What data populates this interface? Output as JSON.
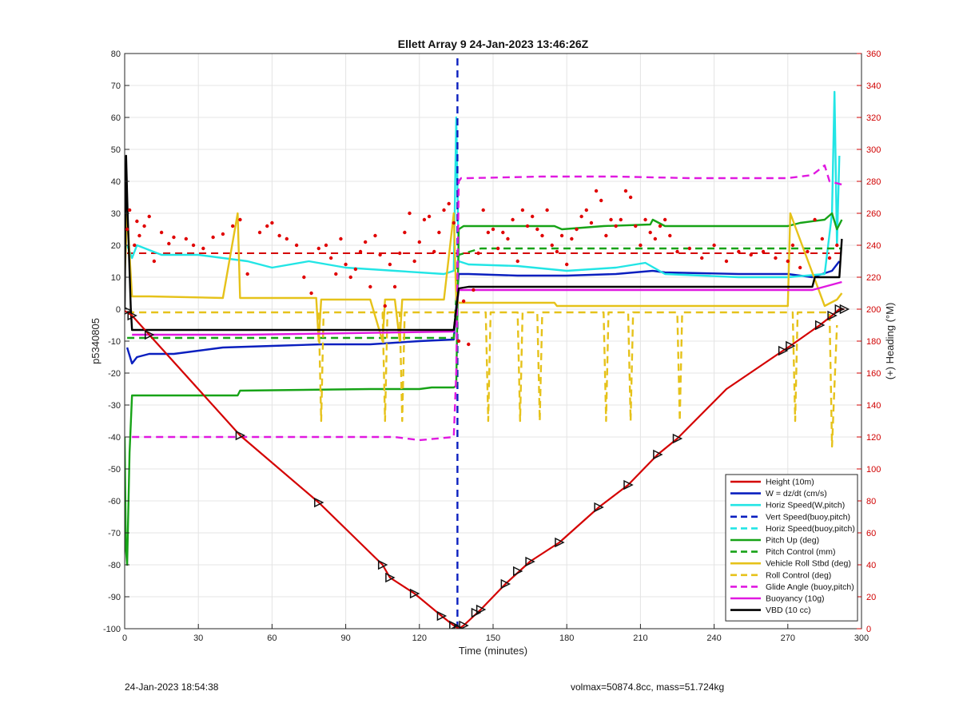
{
  "footer": {
    "timestamp": "24-Jan-2023 18:54:38",
    "info": "volmax=50874.8cc, mass=51.724kg"
  },
  "chart_data": {
    "type": "line",
    "title": "Ellett Array 9 24-Jan-2023 13:46:26Z",
    "xlabel": "Time (minutes)",
    "ylabel": "p5340805",
    "y2label": "(+) Heading (°M)",
    "xlim": [
      0,
      300
    ],
    "ylim": [
      -100,
      80
    ],
    "y2lim": [
      0,
      360
    ],
    "xticks": [
      0,
      30,
      60,
      90,
      120,
      150,
      180,
      210,
      240,
      270,
      300
    ],
    "yticks": [
      -100,
      -90,
      -80,
      -70,
      -60,
      -50,
      -40,
      -30,
      -20,
      -10,
      0,
      10,
      20,
      30,
      40,
      50,
      60,
      70,
      80
    ],
    "y2ticks": [
      0,
      20,
      40,
      60,
      80,
      100,
      120,
      140,
      160,
      180,
      200,
      220,
      240,
      260,
      280,
      300,
      320,
      340,
      360
    ],
    "grid": true,
    "legend_position": "bottom-right",
    "series": [
      {
        "name": "Height (10m)",
        "color": "#d40000",
        "style": "solid",
        "axis": "left",
        "x": [
          0,
          1,
          3,
          10,
          47,
          79,
          105,
          108,
          118,
          129,
          134,
          136,
          138,
          145,
          155,
          165,
          177,
          193,
          205,
          217,
          225,
          245,
          268,
          271,
          283,
          288,
          291,
          293
        ],
        "y": [
          -0.5,
          -1,
          -2,
          -8,
          -39.5,
          -60.5,
          -80,
          -84,
          -89,
          -96,
          -99,
          -100,
          -99,
          -94,
          -86,
          -79,
          -73,
          -62,
          -55,
          -45.5,
          -40.5,
          -25,
          -13,
          -11.5,
          -5,
          -2,
          0,
          0
        ]
      },
      {
        "name": "W = dz/dt (cm/s)",
        "color": "#0a1fbf",
        "style": "solid",
        "axis": "left",
        "x": [
          1,
          3,
          5,
          10,
          20,
          40,
          60,
          80,
          100,
          120,
          134,
          136,
          140,
          160,
          180,
          200,
          215,
          220,
          250,
          270,
          280,
          288,
          291
        ],
        "y": [
          -12,
          -17,
          -15,
          -14,
          -14,
          -12,
          -11.5,
          -11,
          -11,
          -10,
          -9.5,
          11,
          11,
          10.5,
          10.5,
          11,
          12,
          11.5,
          11,
          11,
          10,
          12,
          15
        ]
      },
      {
        "name": "Horiz Speed(W,pitch)",
        "color": "#22e5e5",
        "style": "solid",
        "axis": "left",
        "x": [
          1,
          3,
          5,
          15,
          30,
          50,
          60,
          75,
          90,
          110,
          130,
          134,
          135,
          136,
          140,
          160,
          180,
          200,
          212,
          220,
          250,
          270,
          285,
          288,
          289,
          290,
          291
        ],
        "y": [
          20,
          16,
          20,
          17,
          17,
          15,
          13,
          15,
          13,
          12,
          11,
          12,
          60,
          15,
          14,
          13.5,
          12,
          13,
          14.5,
          11,
          10,
          10,
          11,
          30,
          68,
          20,
          48
        ]
      },
      {
        "name": "Vert Speed(buoy,pitch)",
        "color": "#0a1fbf",
        "style": "dashed",
        "axis": "left",
        "x": [
          135.5,
          135.5
        ],
        "y": [
          -100,
          80
        ]
      },
      {
        "name": "Horiz Speed(buoy,pitch)",
        "color": "#22e5e5",
        "style": "dashed",
        "axis": "left",
        "x": [],
        "y": []
      },
      {
        "name": "Pitch Up (deg)",
        "color": "#17a317",
        "style": "solid",
        "axis": "left",
        "x": [
          0,
          0.5,
          1,
          2,
          3,
          10,
          46,
          47,
          100,
          120,
          125,
          134,
          135,
          136,
          138,
          150,
          175,
          178,
          195,
          214,
          215,
          220,
          270,
          275,
          285,
          288,
          290,
          292
        ],
        "y": [
          -40,
          -75,
          -80,
          -45,
          -27,
          -27,
          -27,
          -25.5,
          -25,
          -25,
          -24.5,
          -24.5,
          -24,
          25,
          26,
          26,
          26,
          25,
          26,
          26.5,
          28,
          26,
          26,
          27,
          28,
          30,
          25,
          28
        ]
      },
      {
        "name": "Pitch Control (mm)",
        "color": "#17a317",
        "style": "dashed",
        "axis": "left",
        "x": [
          1,
          130,
          134,
          136,
          145,
          292
        ],
        "y": [
          -9,
          -9,
          -9,
          17,
          19,
          19
        ]
      },
      {
        "name": "Vehicle Roll Stbd (deg)",
        "color": "#e6c21a",
        "style": "solid",
        "axis": "left",
        "x": [
          0,
          1,
          3,
          10,
          40,
          46,
          47,
          78,
          79,
          80,
          100,
          105,
          106,
          110,
          112,
          113,
          130,
          134,
          135,
          136,
          145,
          175,
          176,
          190,
          215,
          225,
          270,
          271,
          285,
          290,
          292
        ],
        "y": [
          10,
          30,
          4,
          4,
          3.5,
          30,
          3.5,
          3.5,
          -10,
          3,
          3,
          -10,
          3,
          3,
          -10,
          3,
          3,
          30,
          3,
          2,
          2,
          2,
          1,
          1,
          1,
          1,
          1,
          30,
          1,
          3,
          5
        ]
      },
      {
        "name": "Roll Control (deg)",
        "color": "#e6c21a",
        "style": "dashed",
        "axis": "left",
        "x": [
          1,
          10,
          79,
          80,
          81,
          105,
          106,
          107,
          112,
          113,
          114,
          136,
          147,
          148,
          149,
          160,
          161,
          162,
          168,
          169,
          170,
          185,
          195,
          196,
          197,
          205,
          206,
          207,
          225,
          226,
          227,
          272,
          273,
          274,
          287,
          288,
          290
        ],
        "y": [
          -1,
          -1,
          -1,
          -35,
          -1,
          -1,
          -35,
          -1,
          -1,
          -35,
          -1,
          -1,
          -1,
          -35,
          -1,
          -1,
          -35,
          -1,
          -1,
          -35,
          -1,
          -1,
          -1,
          -35,
          -1,
          -1,
          -35,
          -1,
          -1,
          -35,
          -1,
          -1,
          -35,
          -1,
          -1,
          -43,
          -5
        ]
      },
      {
        "name": "Glide Angle (buoy,pitch)",
        "color": "#e019e0",
        "style": "dashed",
        "axis": "left",
        "x": [
          3,
          20,
          50,
          80,
          110,
          120,
          134,
          135,
          136,
          137,
          140,
          170,
          200,
          230,
          270,
          280,
          285,
          287,
          292
        ],
        "y": [
          -40,
          -40,
          -40,
          -40,
          -40,
          -41,
          -40,
          -20,
          40,
          41,
          41,
          41.5,
          41.5,
          41,
          41,
          42,
          45,
          40,
          39
        ]
      },
      {
        "name": "Buoyancy (10g)",
        "color": "#e019e0",
        "style": "solid",
        "axis": "left",
        "x": [
          3,
          50,
          134,
          136,
          280,
          292
        ],
        "y": [
          -8,
          -8,
          -7,
          6,
          6,
          8.5
        ]
      },
      {
        "name": "VBD (10 cc)",
        "color": "#000000",
        "style": "solid",
        "axis": "left",
        "x": [
          0,
          0.6,
          1.2,
          2.5,
          3,
          134,
          136,
          140,
          280,
          281,
          291,
          292
        ],
        "y": [
          0,
          48,
          30,
          0,
          -6.5,
          -6.5,
          6.5,
          7,
          7,
          10,
          10,
          22
        ]
      }
    ],
    "heading": {
      "name": "Heading",
      "color": "#e00000",
      "style": "dots",
      "axis": "right",
      "x": [
        1,
        2,
        4,
        5,
        6,
        8,
        10,
        12,
        15,
        18,
        20,
        25,
        28,
        32,
        36,
        40,
        44,
        47,
        50,
        55,
        58,
        60,
        63,
        66,
        70,
        73,
        76,
        79,
        82,
        84,
        86,
        88,
        90,
        92,
        94,
        96,
        98,
        100,
        102,
        104,
        106,
        108,
        110,
        112,
        114,
        116,
        118,
        120,
        122,
        124,
        126,
        128,
        130,
        132,
        134,
        136,
        138,
        140,
        142,
        144,
        146,
        148,
        150,
        152,
        154,
        156,
        158,
        160,
        162,
        164,
        166,
        168,
        170,
        172,
        174,
        176,
        178,
        180,
        182,
        184,
        186,
        188,
        190,
        192,
        194,
        196,
        198,
        200,
        202,
        204,
        206,
        208,
        210,
        212,
        214,
        216,
        218,
        220,
        222,
        225,
        230,
        235,
        240,
        245,
        250,
        255,
        260,
        265,
        270,
        272,
        275,
        278,
        281,
        284,
        287,
        290
      ],
      "y": [
        250,
        262,
        240,
        255,
        246,
        252,
        258,
        230,
        248,
        241,
        245,
        244,
        240,
        238,
        245,
        247,
        252,
        256,
        222,
        248,
        252,
        254,
        246,
        244,
        240,
        220,
        210,
        238,
        240,
        232,
        222,
        244,
        228,
        220,
        225,
        236,
        242,
        214,
        246,
        234,
        202,
        228,
        214,
        235,
        248,
        260,
        230,
        242,
        256,
        258,
        236,
        248,
        262,
        266,
        254,
        180,
        205,
        178,
        212,
        235,
        262,
        248,
        250,
        238,
        248,
        244,
        256,
        230,
        262,
        252,
        258,
        250,
        246,
        262,
        240,
        236,
        246,
        228,
        244,
        250,
        258,
        262,
        254,
        274,
        268,
        246,
        256,
        252,
        256,
        274,
        270,
        252,
        240,
        256,
        248,
        244,
        252,
        256,
        246,
        236,
        238,
        232,
        240,
        230,
        236,
        234,
        236,
        232,
        230,
        240,
        226,
        236,
        256,
        244,
        232,
        240
      ]
    },
    "heading_ref": {
      "color": "#d40000",
      "style": "dashed",
      "axis": "right",
      "y": 235,
      "x": [
        1,
        292
      ]
    },
    "markers": {
      "shape": "triangle",
      "x": [
        1,
        3,
        10,
        47,
        79,
        105,
        108,
        118,
        129,
        134,
        136,
        138,
        143,
        145,
        155,
        160,
        165,
        177,
        193,
        205,
        217,
        225,
        268,
        271,
        283,
        288,
        291,
        293
      ],
      "y": [
        -0.5,
        -2,
        -8,
        -39.5,
        -60.5,
        -80,
        -84,
        -89,
        -96,
        -99,
        -100,
        -99,
        -95,
        -94,
        -86,
        -82,
        -79,
        -73,
        -62,
        -55,
        -45.5,
        -40.5,
        -13,
        -11.5,
        -5,
        -2,
        0,
        0
      ]
    }
  }
}
